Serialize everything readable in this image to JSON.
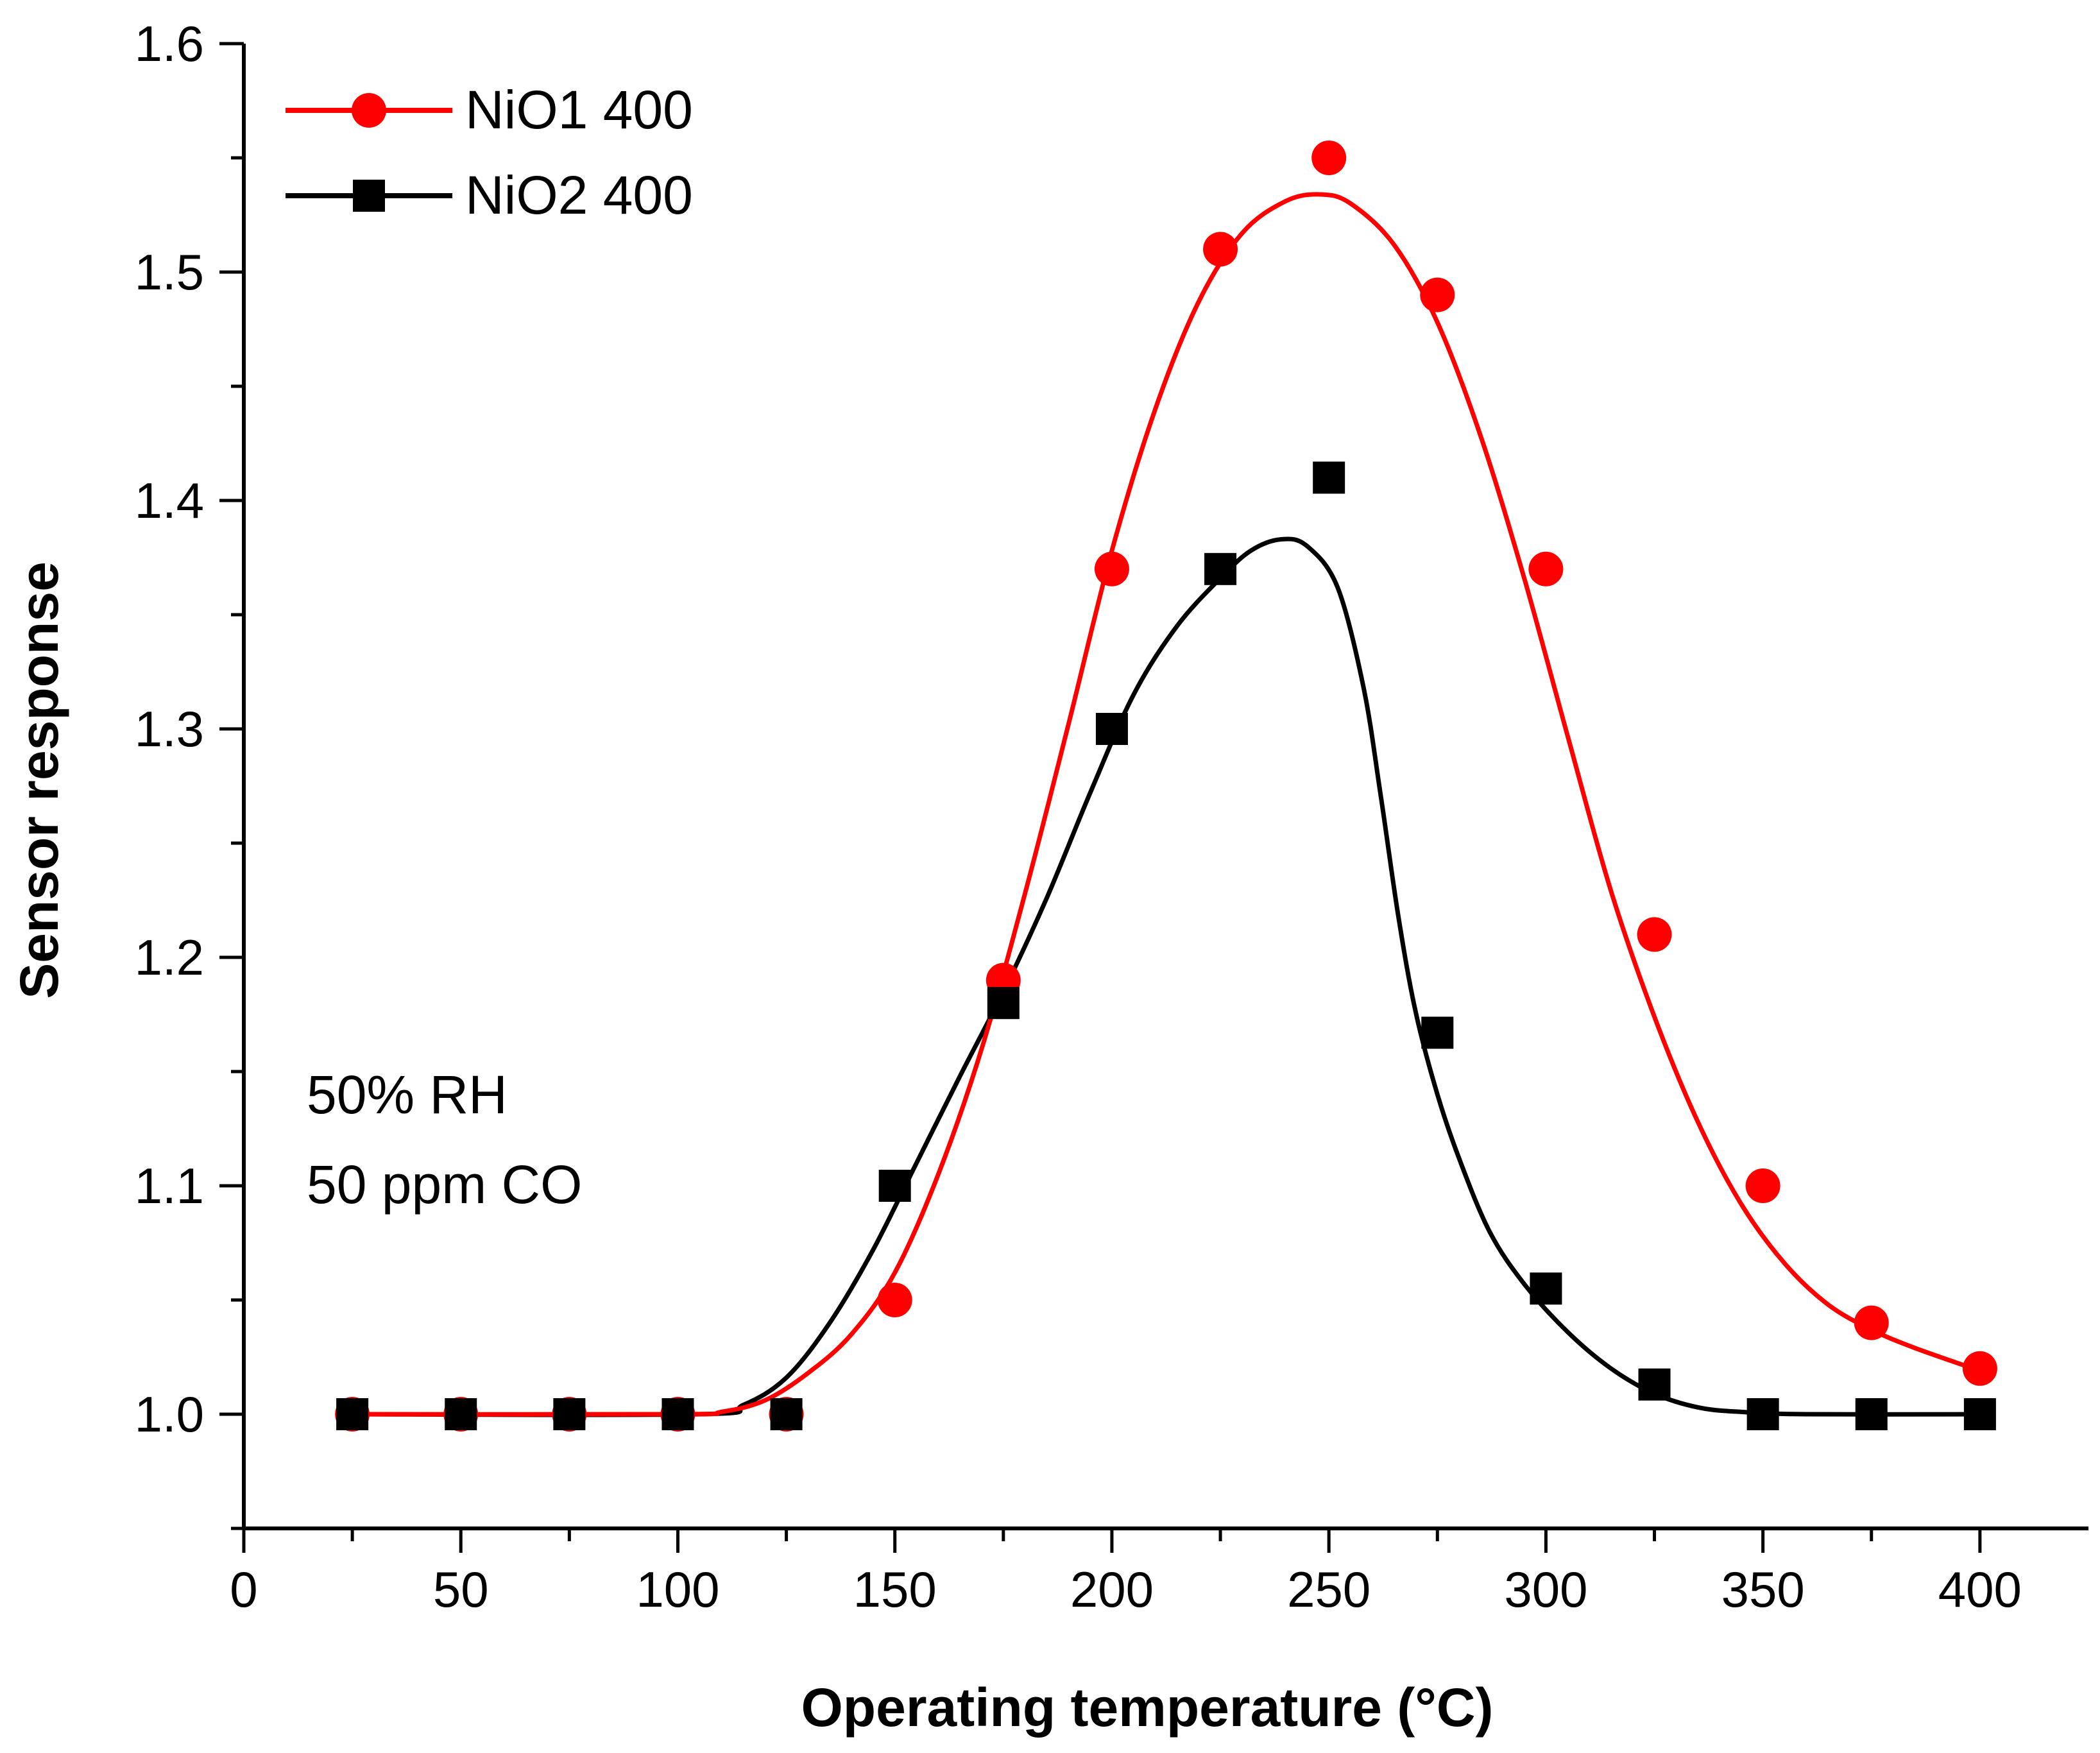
{
  "chart_data": {
    "type": "line",
    "title": "",
    "xlabel": "Operating temperature (°C)",
    "ylabel": "Sensor response",
    "xlim": [
      0,
      425
    ],
    "ylim": [
      0.95,
      1.6
    ],
    "xticks": [
      0,
      50,
      100,
      150,
      200,
      250,
      300,
      350,
      400
    ],
    "xtick_labels": [
      "0",
      "50",
      "100",
      "150",
      "200",
      "250",
      "300",
      "350",
      "400"
    ],
    "yticks": [
      1.0,
      1.1,
      1.2,
      1.3,
      1.4,
      1.5,
      1.6
    ],
    "ytick_labels": [
      "1.0",
      "1.1",
      "1.2",
      "1.3",
      "1.4",
      "1.5",
      "1.6"
    ],
    "grid": false,
    "legend_position": "top-left",
    "annotations": [
      "50% RH",
      "50 ppm CO"
    ],
    "series": [
      {
        "name": "NiO1 400",
        "color": "#ff0000",
        "marker": "circle",
        "x": [
          25,
          50,
          75,
          100,
          125,
          150,
          175,
          200,
          225,
          250,
          275,
          300,
          325,
          350,
          375,
          400
        ],
        "y": [
          1.0,
          1.0,
          1.0,
          1.0,
          1.0,
          1.05,
          1.19,
          1.37,
          1.51,
          1.55,
          1.49,
          1.37,
          1.21,
          1.1,
          1.04,
          1.02
        ],
        "fit_x": [
          25,
          100,
          110,
          120,
          130,
          140,
          150,
          160,
          170,
          180,
          190,
          200,
          210,
          220,
          230,
          240,
          248,
          255,
          265,
          275,
          285,
          295,
          305,
          315,
          325,
          335,
          345,
          355,
          365,
          375,
          385,
          400
        ],
        "fit_y": [
          1.0,
          1.0,
          1.001,
          1.006,
          1.018,
          1.035,
          1.062,
          1.105,
          1.16,
          1.228,
          1.302,
          1.378,
          1.44,
          1.487,
          1.517,
          1.531,
          1.534,
          1.53,
          1.512,
          1.478,
          1.428,
          1.366,
          1.297,
          1.229,
          1.174,
          1.128,
          1.092,
          1.066,
          1.048,
          1.037,
          1.029,
          1.019
        ]
      },
      {
        "name": "NiO2 400",
        "color": "#000000",
        "marker": "square",
        "x": [
          25,
          50,
          75,
          100,
          125,
          150,
          175,
          200,
          225,
          250,
          275,
          300,
          325,
          350,
          375,
          400
        ],
        "y": [
          1.0,
          1.0,
          1.0,
          1.0,
          1.0,
          1.1,
          1.18,
          1.3,
          1.37,
          1.41,
          1.167,
          1.055,
          1.013,
          1.0,
          1.0,
          1.0
        ],
        "fit_x": [
          25,
          105,
          115,
          125,
          135,
          145,
          155,
          165,
          175,
          185,
          195,
          205,
          215,
          225,
          232,
          239,
          245,
          252,
          258,
          262,
          266,
          270,
          275,
          280,
          287,
          295,
          305,
          315,
          325,
          335,
          345,
          360,
          400
        ],
        "fit_y": [
          1.0,
          1.0,
          1.004,
          1.016,
          1.04,
          1.072,
          1.11,
          1.148,
          1.185,
          1.226,
          1.272,
          1.315,
          1.345,
          1.366,
          1.378,
          1.383,
          1.38,
          1.362,
          1.318,
          1.27,
          1.218,
          1.176,
          1.14,
          1.112,
          1.08,
          1.057,
          1.036,
          1.02,
          1.009,
          1.003,
          1.001,
          1.0,
          1.0
        ]
      }
    ]
  }
}
